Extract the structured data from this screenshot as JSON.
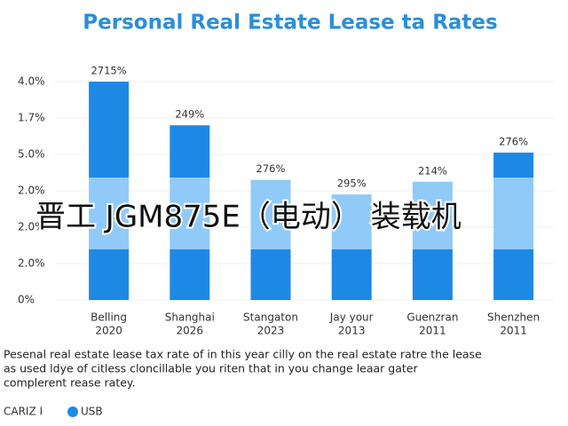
{
  "chart_data": {
    "type": "bar",
    "title": "Personal Real Estate Lease ta Rates",
    "categories": [
      [
        "Belling",
        "2020"
      ],
      [
        "Shanghai",
        "2026"
      ],
      [
        "Stangaton",
        "2023"
      ],
      [
        "Jay your",
        "2013"
      ],
      [
        "Guenzran",
        "2011"
      ],
      [
        "Shenzhen",
        "2011"
      ]
    ],
    "values": [
      6.0,
      4.8,
      3.3,
      2.9,
      3.25,
      4.05
    ],
    "annotations": [
      "2715%",
      "249%",
      "276%",
      "295%",
      "214%",
      "276%"
    ],
    "color": "#1e88e5",
    "band_color": "#90caf9",
    "ylim": [
      0,
      6
    ],
    "yticks": [
      {
        "value": 6,
        "label": "4.0%"
      },
      {
        "value": 5,
        "label": "1.7%"
      },
      {
        "value": 4,
        "label": "5.0%"
      },
      {
        "value": 3,
        "label": "2.0%"
      },
      {
        "value": 2,
        "label": "2.0%"
      },
      {
        "value": 1,
        "label": "2.0%"
      },
      {
        "value": 0,
        "label": "0%"
      }
    ],
    "grid": true,
    "caption": [
      "Pesenal real estate lease tax rate of in this year cilly on the real estate ratre the lease",
      "as used ldye of citless cloncillable you riten that in you change leaar gater",
      "complerent rease ratey."
    ],
    "legend": [
      "CARIZ I",
      "USB"
    ],
    "watermark": "晋工 JGM875E（电动） 装载机"
  }
}
